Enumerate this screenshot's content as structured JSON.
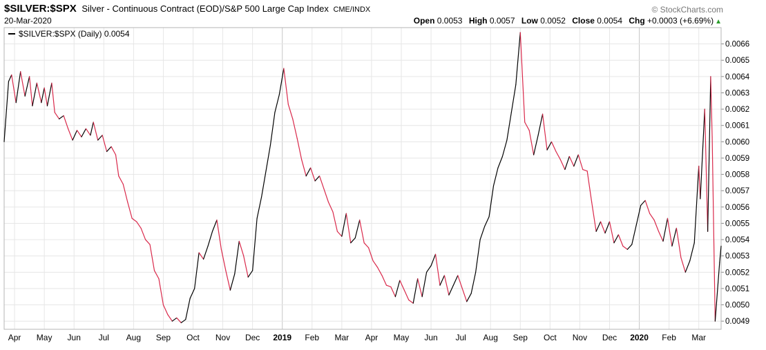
{
  "header": {
    "symbol": "$SILVER:$SPX",
    "description": "Silver - Continuous Contract (EOD)/S&P 500 Large Cap Index",
    "exchange": "CME/INDX",
    "date": "20-Mar-2020",
    "brand": "© StockCharts.com",
    "open_label": "Open",
    "open": "0.0053",
    "high_label": "High",
    "high": "0.0057",
    "low_label": "Low",
    "low": "0.0052",
    "close_label": "Close",
    "close": "0.0054",
    "chg_label": "Chg",
    "chg": "+0.0003 (+6.69%)",
    "up_icon": "triangle-up-icon"
  },
  "legend": {
    "text": "$SILVER:$SPX (Daily) 0.0054"
  },
  "colors": {
    "line_up": "#000000",
    "line_down": "#d9284a",
    "grid": "#e6e6e6",
    "frame": "#b5b5b5",
    "year_line": "#c6c6c6"
  },
  "chart_data": {
    "type": "line",
    "title": "$SILVER:$SPX (Daily)",
    "ylim": [
      0.00485,
      0.0067
    ],
    "y_ticks": [
      "0.0049",
      "0.0050",
      "0.0051",
      "0.0052",
      "0.0053",
      "0.0054",
      "0.0055",
      "0.0056",
      "0.0057",
      "0.0058",
      "0.0059",
      "0.0060",
      "0.0061",
      "0.0062",
      "0.0063",
      "0.0064",
      "0.0065",
      "0.0066"
    ],
    "x_ticks": [
      {
        "label": "Apr",
        "month": 0
      },
      {
        "label": "May",
        "month": 1
      },
      {
        "label": "Jun",
        "month": 2
      },
      {
        "label": "Jul",
        "month": 3
      },
      {
        "label": "Aug",
        "month": 4
      },
      {
        "label": "Sep",
        "month": 5
      },
      {
        "label": "Oct",
        "month": 6
      },
      {
        "label": "Nov",
        "month": 7
      },
      {
        "label": "Dec",
        "month": 8
      },
      {
        "label": "2019",
        "month": 9,
        "bold": true
      },
      {
        "label": "Feb",
        "month": 10
      },
      {
        "label": "Mar",
        "month": 11
      },
      {
        "label": "Apr",
        "month": 12
      },
      {
        "label": "May",
        "month": 13
      },
      {
        "label": "Jun",
        "month": 14
      },
      {
        "label": "Jul",
        "month": 15
      },
      {
        "label": "Aug",
        "month": 16
      },
      {
        "label": "Sep",
        "month": 17
      },
      {
        "label": "Oct",
        "month": 18
      },
      {
        "label": "Nov",
        "month": 19
      },
      {
        "label": "Dec",
        "month": 20
      },
      {
        "label": "2020",
        "month": 21,
        "bold": true
      },
      {
        "label": "Feb",
        "month": 22
      },
      {
        "label": "Mar",
        "month": 23
      }
    ],
    "x_range": [
      -0.35,
      23.75
    ],
    "points": [
      [
        -0.35,
        0.006
      ],
      [
        -0.2,
        0.00637
      ],
      [
        -0.1,
        0.00641
      ],
      [
        0.05,
        0.00624
      ],
      [
        0.2,
        0.00643
      ],
      [
        0.35,
        0.00628
      ],
      [
        0.5,
        0.0064
      ],
      [
        0.6,
        0.00622
      ],
      [
        0.75,
        0.00636
      ],
      [
        0.9,
        0.00624
      ],
      [
        1.0,
        0.00633
      ],
      [
        1.1,
        0.00622
      ],
      [
        1.25,
        0.00636
      ],
      [
        1.35,
        0.00618
      ],
      [
        1.5,
        0.00614
      ],
      [
        1.65,
        0.00616
      ],
      [
        1.8,
        0.00608
      ],
      [
        1.95,
        0.00601
      ],
      [
        2.1,
        0.00607
      ],
      [
        2.25,
        0.00603
      ],
      [
        2.4,
        0.00608
      ],
      [
        2.55,
        0.00604
      ],
      [
        2.65,
        0.00612
      ],
      [
        2.8,
        0.00601
      ],
      [
        2.95,
        0.00604
      ],
      [
        3.1,
        0.00594
      ],
      [
        3.25,
        0.00597
      ],
      [
        3.4,
        0.00592
      ],
      [
        3.5,
        0.00579
      ],
      [
        3.65,
        0.00574
      ],
      [
        3.8,
        0.00563
      ],
      [
        3.95,
        0.00553
      ],
      [
        4.1,
        0.00551
      ],
      [
        4.25,
        0.00547
      ],
      [
        4.4,
        0.0054
      ],
      [
        4.55,
        0.00537
      ],
      [
        4.7,
        0.00521
      ],
      [
        4.85,
        0.00516
      ],
      [
        5.0,
        0.005
      ],
      [
        5.15,
        0.00494
      ],
      [
        5.3,
        0.0049
      ],
      [
        5.45,
        0.00492
      ],
      [
        5.6,
        0.00489
      ],
      [
        5.75,
        0.00491
      ],
      [
        5.9,
        0.00504
      ],
      [
        6.05,
        0.0051
      ],
      [
        6.2,
        0.00532
      ],
      [
        6.35,
        0.00528
      ],
      [
        6.5,
        0.00536
      ],
      [
        6.65,
        0.00545
      ],
      [
        6.8,
        0.00552
      ],
      [
        6.95,
        0.00534
      ],
      [
        7.1,
        0.00521
      ],
      [
        7.25,
        0.00509
      ],
      [
        7.4,
        0.00519
      ],
      [
        7.55,
        0.00539
      ],
      [
        7.7,
        0.0053
      ],
      [
        7.85,
        0.00517
      ],
      [
        8.0,
        0.00521
      ],
      [
        8.15,
        0.00553
      ],
      [
        8.3,
        0.00566
      ],
      [
        8.45,
        0.00582
      ],
      [
        8.6,
        0.00598
      ],
      [
        8.75,
        0.00618
      ],
      [
        8.9,
        0.00629
      ],
      [
        9.05,
        0.00645
      ],
      [
        9.2,
        0.00623
      ],
      [
        9.35,
        0.00614
      ],
      [
        9.5,
        0.00602
      ],
      [
        9.65,
        0.00589
      ],
      [
        9.8,
        0.00579
      ],
      [
        9.95,
        0.00584
      ],
      [
        10.1,
        0.00576
      ],
      [
        10.25,
        0.00579
      ],
      [
        10.4,
        0.00571
      ],
      [
        10.55,
        0.00563
      ],
      [
        10.7,
        0.00557
      ],
      [
        10.85,
        0.00545
      ],
      [
        11.0,
        0.00542
      ],
      [
        11.15,
        0.00556
      ],
      [
        11.3,
        0.00538
      ],
      [
        11.45,
        0.00541
      ],
      [
        11.6,
        0.00552
      ],
      [
        11.75,
        0.00538
      ],
      [
        11.9,
        0.00535
      ],
      [
        12.05,
        0.00527
      ],
      [
        12.2,
        0.00523
      ],
      [
        12.35,
        0.00518
      ],
      [
        12.5,
        0.00512
      ],
      [
        12.65,
        0.00511
      ],
      [
        12.8,
        0.00505
      ],
      [
        12.95,
        0.00515
      ],
      [
        13.1,
        0.00509
      ],
      [
        13.25,
        0.00503
      ],
      [
        13.4,
        0.00501
      ],
      [
        13.55,
        0.00516
      ],
      [
        13.7,
        0.00505
      ],
      [
        13.85,
        0.0052
      ],
      [
        14.0,
        0.00524
      ],
      [
        14.15,
        0.00531
      ],
      [
        14.3,
        0.00512
      ],
      [
        14.45,
        0.00518
      ],
      [
        14.6,
        0.00506
      ],
      [
        14.75,
        0.00512
      ],
      [
        14.9,
        0.00518
      ],
      [
        15.05,
        0.0051
      ],
      [
        15.2,
        0.00502
      ],
      [
        15.35,
        0.00507
      ],
      [
        15.5,
        0.0052
      ],
      [
        15.65,
        0.0054
      ],
      [
        15.8,
        0.00548
      ],
      [
        15.95,
        0.00554
      ],
      [
        16.1,
        0.00573
      ],
      [
        16.25,
        0.00584
      ],
      [
        16.4,
        0.00591
      ],
      [
        16.55,
        0.00601
      ],
      [
        16.7,
        0.00618
      ],
      [
        16.85,
        0.00635
      ],
      [
        17.0,
        0.00667
      ],
      [
        17.15,
        0.00612
      ],
      [
        17.3,
        0.00607
      ],
      [
        17.45,
        0.00592
      ],
      [
        17.6,
        0.00604
      ],
      [
        17.75,
        0.00617
      ],
      [
        17.9,
        0.00595
      ],
      [
        18.05,
        0.006
      ],
      [
        18.2,
        0.00594
      ],
      [
        18.35,
        0.00589
      ],
      [
        18.5,
        0.00583
      ],
      [
        18.65,
        0.00591
      ],
      [
        18.8,
        0.00585
      ],
      [
        18.95,
        0.00592
      ],
      [
        19.1,
        0.00583
      ],
      [
        19.25,
        0.00582
      ],
      [
        19.4,
        0.00563
      ],
      [
        19.55,
        0.00545
      ],
      [
        19.7,
        0.00551
      ],
      [
        19.85,
        0.00544
      ],
      [
        20.0,
        0.00551
      ],
      [
        20.15,
        0.00538
      ],
      [
        20.3,
        0.00543
      ],
      [
        20.45,
        0.00536
      ],
      [
        20.6,
        0.00534
      ],
      [
        20.75,
        0.00537
      ],
      [
        20.9,
        0.00549
      ],
      [
        21.05,
        0.00561
      ],
      [
        21.2,
        0.00564
      ],
      [
        21.35,
        0.00556
      ],
      [
        21.5,
        0.00552
      ],
      [
        21.65,
        0.00545
      ],
      [
        21.8,
        0.00539
      ],
      [
        21.95,
        0.00553
      ],
      [
        22.1,
        0.00536
      ],
      [
        22.25,
        0.00547
      ],
      [
        22.4,
        0.00529
      ],
      [
        22.55,
        0.0052
      ],
      [
        22.7,
        0.00527
      ],
      [
        22.85,
        0.00538
      ],
      [
        23.0,
        0.00585
      ],
      [
        23.05,
        0.00565
      ],
      [
        23.2,
        0.0062
      ],
      [
        23.3,
        0.00545
      ],
      [
        23.4,
        0.0064
      ],
      [
        23.45,
        0.00603
      ],
      [
        23.55,
        0.0049
      ],
      [
        23.7,
        0.00526
      ],
      [
        23.75,
        0.00536
      ]
    ]
  }
}
